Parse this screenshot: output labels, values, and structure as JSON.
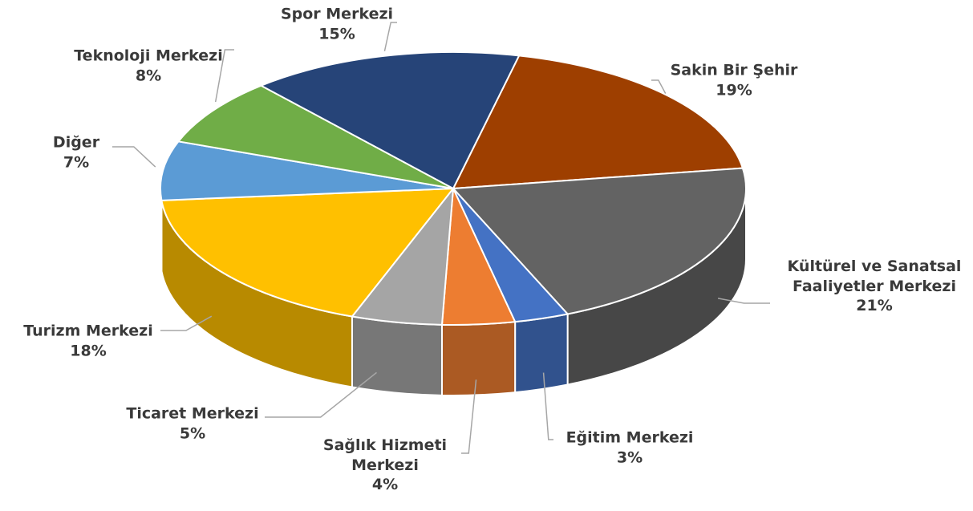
{
  "chart_data": {
    "type": "pie",
    "categories": [
      "Sakin Bir Şehir",
      "Kültürel ve Sanatsal Faaliyetler Merkezi",
      "Eğitim Merkezi",
      "Sağlık Hizmeti Merkezi",
      "Ticaret Merkezi",
      "Turizm Merkezi",
      "Diğer",
      "Teknoloji Merkezi",
      "Spor Merkezi"
    ],
    "values": [
      19,
      21,
      3,
      4,
      5,
      18,
      7,
      8,
      15
    ],
    "value_labels": [
      "19%",
      "21%",
      "3%",
      "4%",
      "5%",
      "18%",
      "7%",
      "8%",
      "15%"
    ],
    "colors": [
      "#9e3f00",
      "#636363",
      "#4472c4",
      "#ed7d31",
      "#a5a5a5",
      "#ffc000",
      "#5b9bd5",
      "#70ad47",
      "#264478"
    ]
  }
}
